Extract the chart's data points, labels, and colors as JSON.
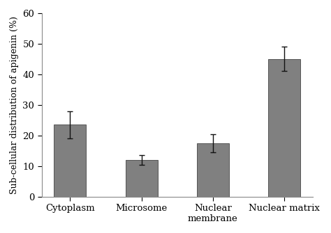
{
  "categories": [
    "Cytoplasm",
    "Microsome",
    "Nuclear\nmembrane",
    "Nuclear matrix"
  ],
  "values": [
    23.5,
    12.0,
    17.5,
    45.0
  ],
  "errors": [
    4.5,
    1.5,
    3.0,
    4.0
  ],
  "bar_color": "#808080",
  "bar_edgecolor": "#555555",
  "ylabel": "Sub-cellular distribution of apigenin (%)",
  "ylim": [
    0,
    60
  ],
  "yticks": [
    0,
    10,
    20,
    30,
    40,
    50,
    60
  ],
  "bar_width": 0.45,
  "error_capsize": 3,
  "error_color": "#111111",
  "error_linewidth": 1.0,
  "background_color": "#ffffff",
  "tick_labelsize": 9.5,
  "ylabel_fontsize": 9.0
}
